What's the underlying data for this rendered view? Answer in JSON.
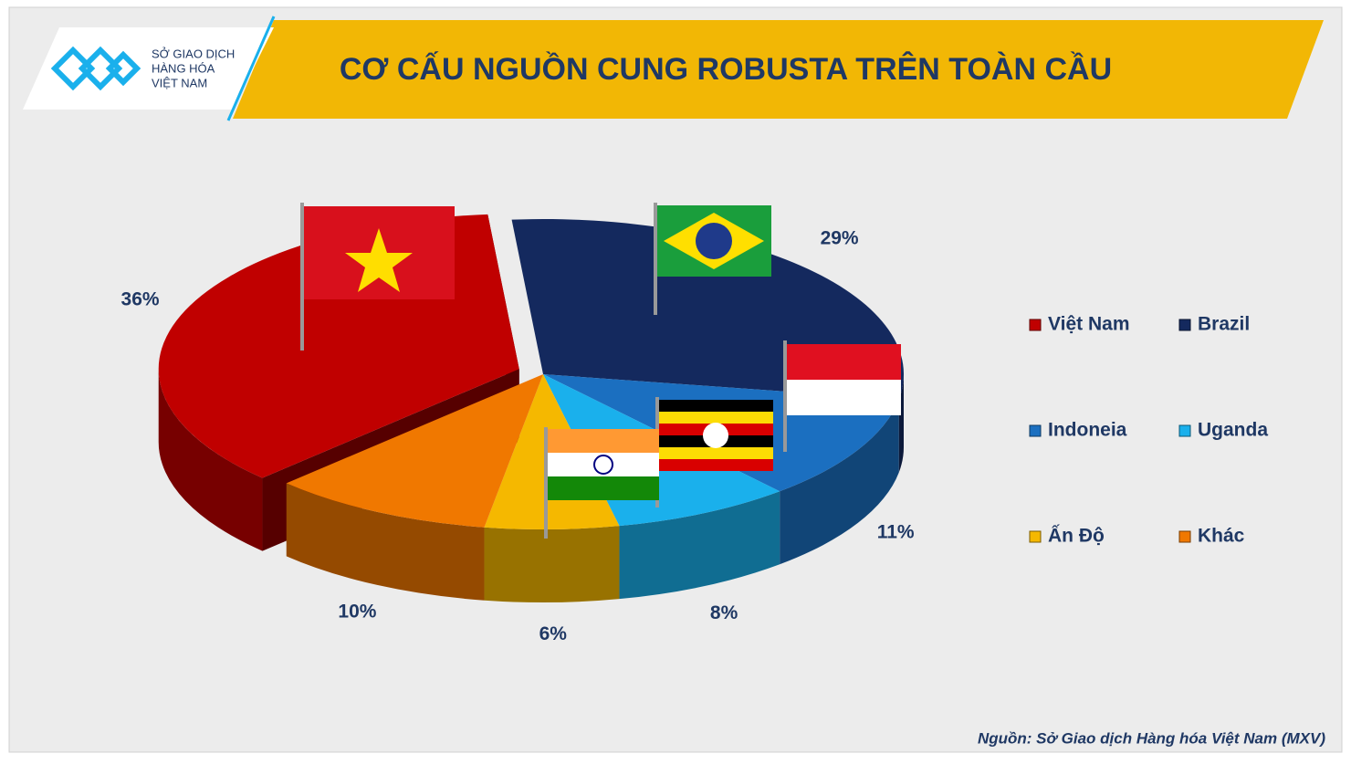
{
  "logo": [
    "SỞ GIAO DỊCH",
    "HÀNG HÓA",
    "VIỆT NAM"
  ],
  "chart_data": {
    "type": "pie",
    "title": "CƠ CẤU NGUỒN CUNG ROBUSTA TRÊN TOÀN CẦU",
    "categories": [
      "Việt Nam",
      "Brazil",
      "Indoneia",
      "Uganda",
      "Ấn Độ",
      "Khác"
    ],
    "values": [
      36,
      29,
      11,
      8,
      6,
      10
    ],
    "value_labels": [
      "36%",
      "29%",
      "11%",
      "8%",
      "6%",
      "10%"
    ],
    "colors": [
      "#c00000",
      "#14295e",
      "#1b6fc0",
      "#1ab0ec",
      "#f5b800",
      "#f07800"
    ],
    "legend": "right",
    "source": "Nguồn: Sở Giao dịch Hàng hóa Việt Nam (MXV)"
  }
}
